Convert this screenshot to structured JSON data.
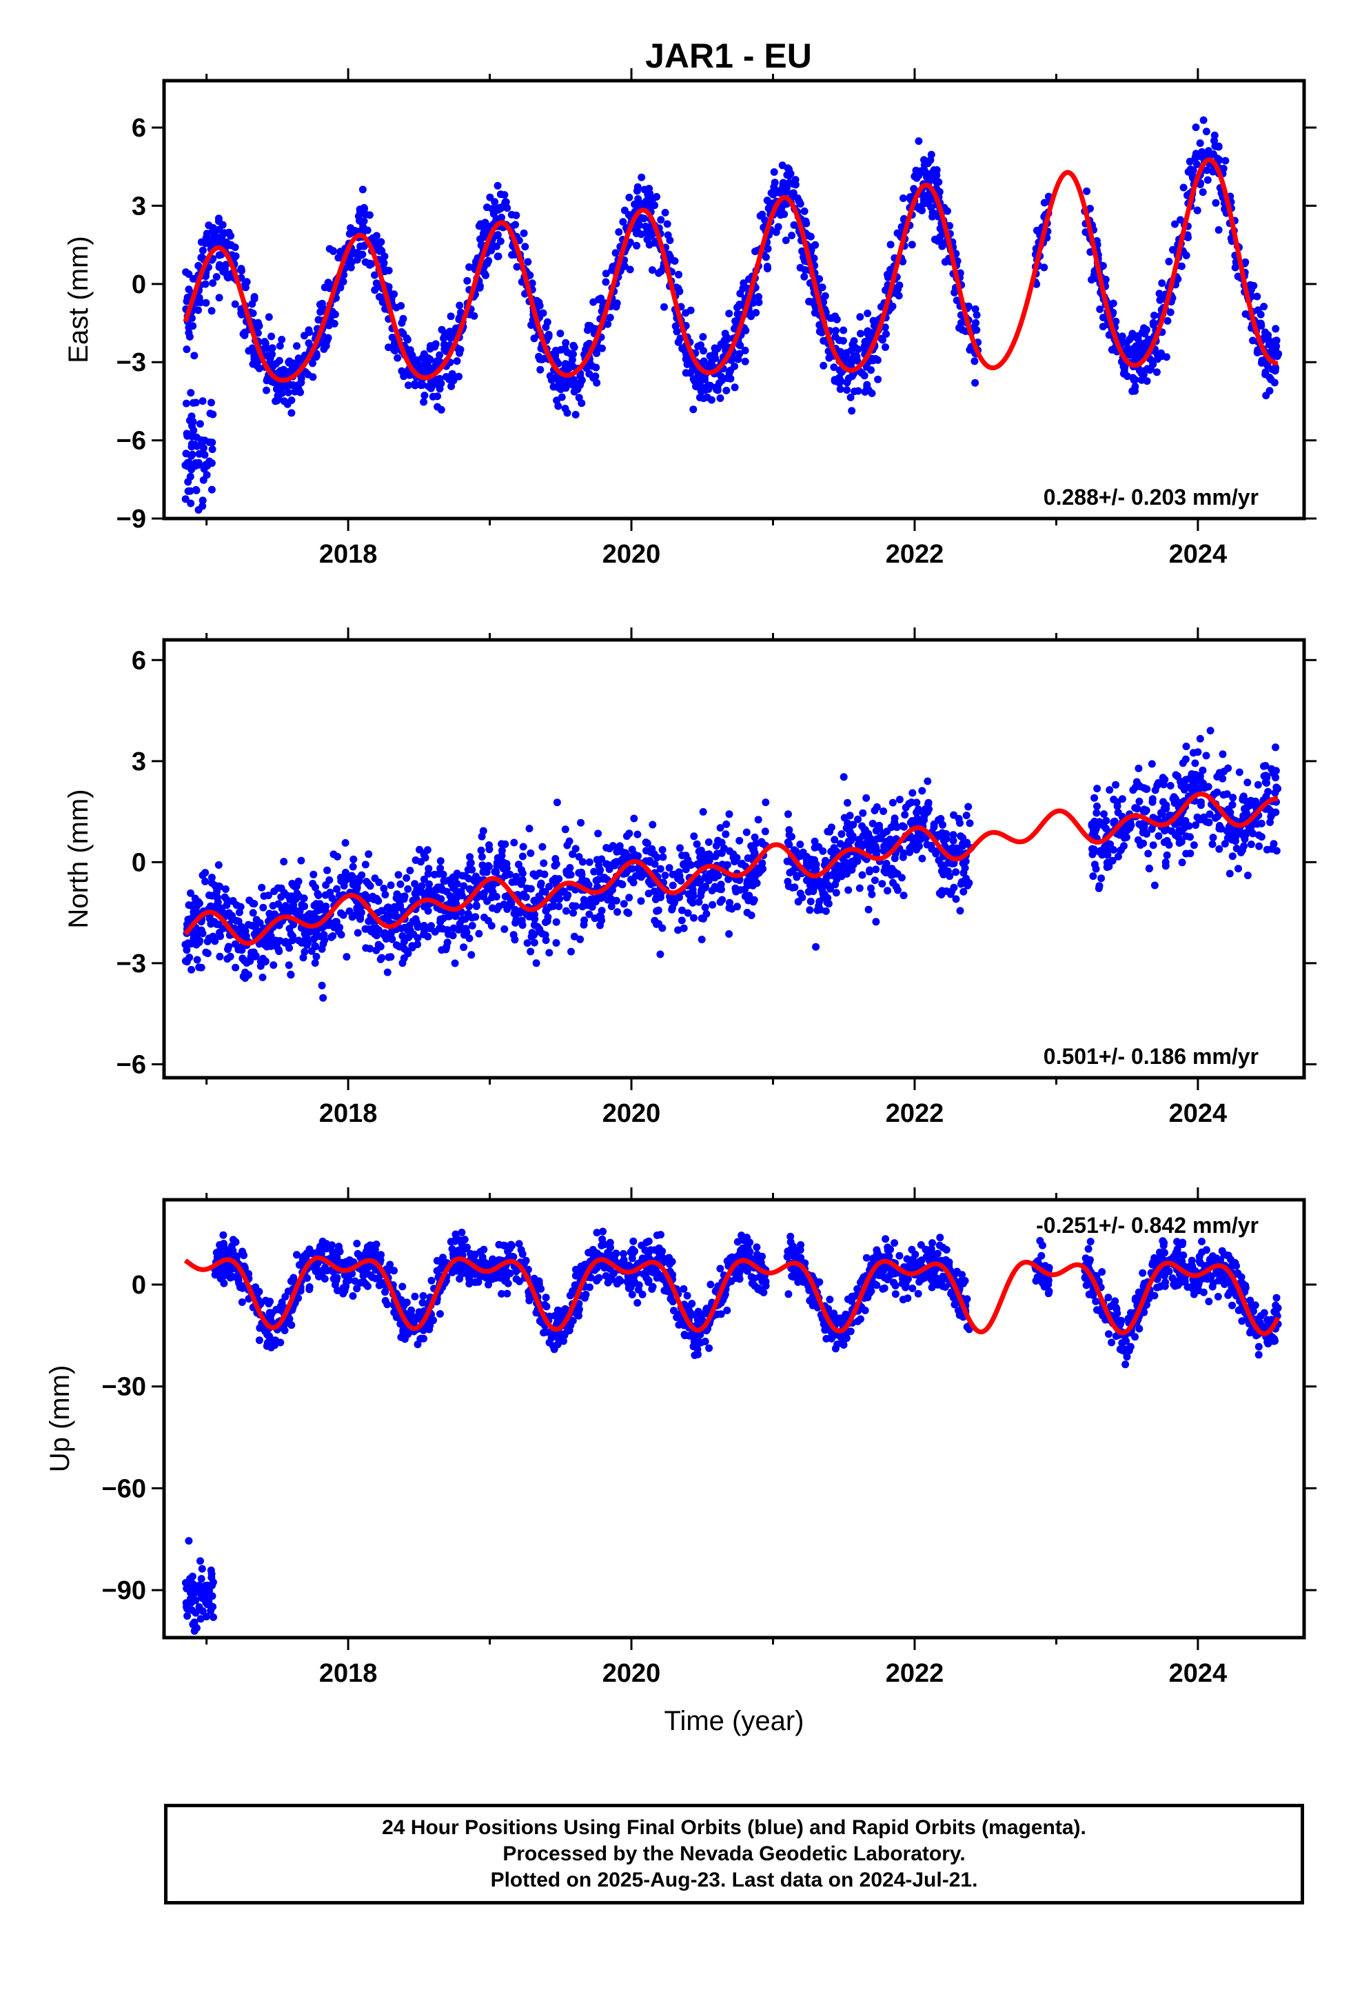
{
  "title": "JAR1 - EU",
  "colors": {
    "points": "#0000ff",
    "fit": "#ff0000",
    "frame": "#000000"
  },
  "chart_data": [
    {
      "type": "scatter",
      "name": "east",
      "ylabel": "East (mm)",
      "xlabel": "",
      "xlim": [
        2016.7,
        2024.75
      ],
      "ylim": [
        -9,
        7.8
      ],
      "x_ticks": [
        2018,
        2020,
        2022,
        2024
      ],
      "x_tick_labels": [
        "2018",
        "2020",
        "2022",
        "2024"
      ],
      "y_ticks": [
        -9,
        -6,
        -3,
        0,
        3,
        6
      ],
      "y_tick_labels": [
        "−9",
        "−6",
        "−3",
        "0",
        "3",
        "6"
      ],
      "rate_label": "0.288+/- 0.203 mm/yr",
      "rate_position": "bottom-right",
      "model": {
        "offset": -0.45,
        "trend": 0.288,
        "ref_year": 2020.7,
        "annual_amp": 3.25,
        "annual_amp_growth": 0.06,
        "annual_phase": 1.13,
        "semiannual_amp": 0.35,
        "semiannual_phase": 0.3
      },
      "data_segments": [
        [
          2016.85,
          2022.45
        ],
        [
          2022.85,
          2022.95
        ],
        [
          2023.2,
          2024.57
        ]
      ],
      "noise": 0.9,
      "early_points": [
        {
          "x": [
            2016.85,
            2017.05
          ],
          "y": [
            -6.5,
            -6.5
          ],
          "spread": 1.1
        }
      ],
      "fit_range": [
        2016.85,
        2024.57
      ]
    },
    {
      "type": "scatter",
      "name": "north",
      "ylabel": "North (mm)",
      "xlabel": "",
      "xlim": [
        2016.7,
        2024.75
      ],
      "ylim": [
        -6.4,
        6.6
      ],
      "x_ticks": [
        2018,
        2020,
        2022,
        2024
      ],
      "x_tick_labels": [
        "2018",
        "2020",
        "2022",
        "2024"
      ],
      "y_ticks": [
        -6,
        -3,
        0,
        3,
        6
      ],
      "y_tick_labels": [
        "−6",
        "−3",
        "0",
        "3",
        "6"
      ],
      "rate_label": "0.501+/- 0.186 mm/yr",
      "rate_position": "bottom-right",
      "model": {
        "offset": -0.2,
        "trend": 0.501,
        "ref_year": 2020.7,
        "annual_amp": 0.25,
        "annual_amp_growth": 0.0,
        "annual_phase": 2.0,
        "semiannual_amp": 0.35,
        "semiannual_phase": 1.2
      },
      "data_segments": [
        [
          2016.85,
          2020.95
        ],
        [
          2021.1,
          2022.4
        ],
        [
          2023.25,
          2024.57
        ]
      ],
      "noise": 0.9,
      "early_points": [],
      "fit_range": [
        2016.85,
        2024.57
      ]
    },
    {
      "type": "scatter",
      "name": "up",
      "ylabel": "Up (mm)",
      "xlabel": "Time (year)",
      "xlim": [
        2016.7,
        2024.75
      ],
      "ylim": [
        -104,
        25
      ],
      "x_ticks": [
        2018,
        2020,
        2022,
        2024
      ],
      "x_tick_labels": [
        "2018",
        "2020",
        "2022",
        "2024"
      ],
      "y_ticks": [
        -90,
        -60,
        -30,
        0
      ],
      "y_tick_labels": [
        "−90",
        "−60",
        "−30",
        "0"
      ],
      "rate_label": "-0.251+/- 0.842 mm/yr",
      "rate_position": "top-right",
      "model": {
        "offset": 0.0,
        "trend": -0.251,
        "ref_year": 2020.7,
        "annual_amp": 8.5,
        "annual_amp_growth": 0.0,
        "annual_phase": 1.8,
        "semiannual_amp": 5.0,
        "semiannual_phase": -1.2
      },
      "data_segments": [
        [
          2017.05,
          2020.95
        ],
        [
          2021.1,
          2022.4
        ],
        [
          2022.85,
          2022.95
        ],
        [
          2023.2,
          2024.57
        ]
      ],
      "noise": 4.5,
      "early_points": [
        {
          "x": [
            2016.85,
            2017.05
          ],
          "y": [
            -92,
            -92
          ],
          "spread": 5.0
        }
      ],
      "fit_range": [
        2016.85,
        2024.57
      ]
    }
  ],
  "footer": {
    "line1": "24 Hour Positions Using Final Orbits (blue) and Rapid Orbits (magenta).",
    "line2": "Processed by the Nevada Geodetic Laboratory.",
    "line3": "Plotted on 2025-Aug-23. Last data on 2024-Jul-21."
  }
}
